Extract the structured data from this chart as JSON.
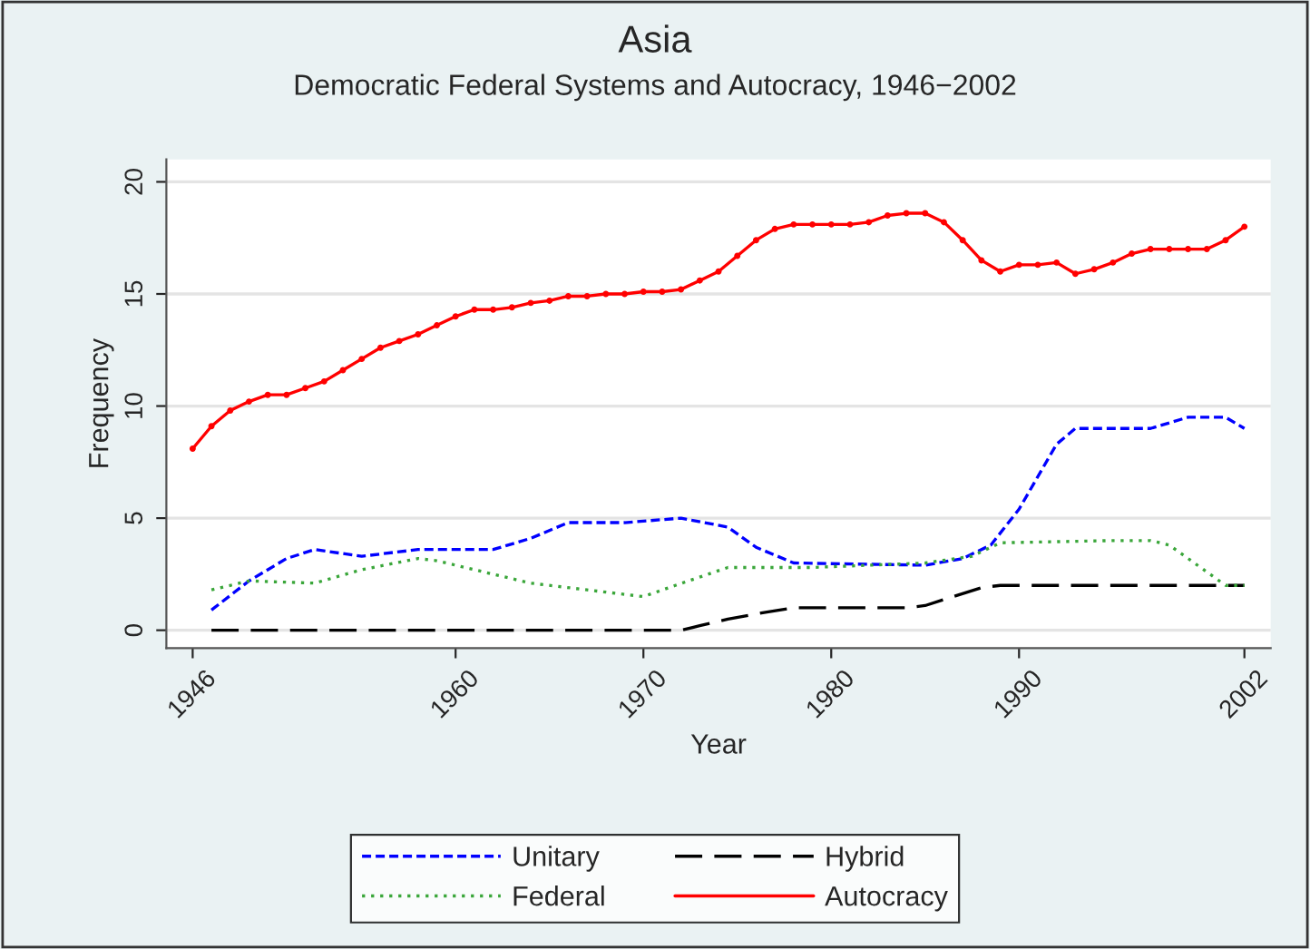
{
  "chart_data": {
    "type": "line",
    "title": "Asia",
    "subtitle": "Democratic Federal Systems and Autocracy, 1946−2002",
    "xlabel": "Year",
    "ylabel": "Frequency",
    "xlim": [
      1944.6,
      2003.4
    ],
    "xticks": [
      1946,
      1960,
      1970,
      1980,
      1990,
      2002
    ],
    "ylim": [
      -0.8,
      21
    ],
    "yticks": [
      0,
      5,
      10,
      15,
      20
    ],
    "grid": "y",
    "legend": "bottom",
    "series": [
      {
        "name": "Unitary",
        "color": "#0000ff",
        "line_style": "dashed",
        "x": [
          1947,
          1949,
          1951,
          1952.5,
          1955,
          1958,
          1962,
          1964,
          1966,
          1969,
          1972,
          1974.5,
          1976,
          1978,
          1985,
          1987,
          1988.5,
          1990,
          1992,
          1993,
          1997,
          1999,
          2001,
          2002
        ],
        "values": [
          0.9,
          2.2,
          3.2,
          3.6,
          3.3,
          3.6,
          3.6,
          4.1,
          4.8,
          4.8,
          5.0,
          4.6,
          3.7,
          3.0,
          2.9,
          3.2,
          3.8,
          5.4,
          8.3,
          9.0,
          9.0,
          9.5,
          9.5,
          9.0
        ]
      },
      {
        "name": "Hybrid",
        "color": "#000000",
        "line_style": "longdash",
        "x": [
          1947,
          1972,
          1973,
          1974.5,
          1976.5,
          1978,
          1984,
          1985,
          1988,
          1989,
          2002
        ],
        "values": [
          0,
          0,
          0.2,
          0.5,
          0.8,
          1.0,
          1.0,
          1.1,
          1.9,
          2.0,
          2.0
        ]
      },
      {
        "name": "Federal",
        "color": "#3aa63a",
        "line_style": "dotted",
        "x": [
          1947,
          1949,
          1952.5,
          1955,
          1958,
          1959,
          1964,
          1967,
          1970,
          1971.7,
          1974.5,
          1979,
          1985,
          1987.5,
          1989,
          1995,
          1997,
          1998,
          2001,
          2002
        ],
        "values": [
          1.8,
          2.2,
          2.1,
          2.7,
          3.2,
          3.1,
          2.1,
          1.8,
          1.5,
          2.0,
          2.8,
          2.8,
          3.0,
          3.3,
          3.9,
          4.0,
          4.0,
          3.8,
          2.0,
          2.0
        ]
      },
      {
        "name": "Autocracy",
        "color": "#ff0000",
        "line_style": "solid",
        "marker": "circle",
        "x": [
          1946,
          1947,
          1948,
          1949,
          1950,
          1951,
          1952,
          1953,
          1954,
          1955,
          1956,
          1957,
          1958,
          1959,
          1960,
          1961,
          1962,
          1963,
          1964,
          1965,
          1966,
          1967,
          1968,
          1969,
          1970,
          1971,
          1972,
          1973,
          1974,
          1975,
          1976,
          1977,
          1978,
          1979,
          1980,
          1981,
          1982,
          1983,
          1984,
          1985,
          1986,
          1987,
          1988,
          1989,
          1990,
          1991,
          1992,
          1993,
          1994,
          1995,
          1996,
          1997,
          1998,
          1999,
          2000,
          2001,
          2002
        ],
        "values": [
          8.1,
          9.1,
          9.8,
          10.2,
          10.5,
          10.5,
          10.8,
          11.1,
          11.6,
          12.1,
          12.6,
          12.9,
          13.2,
          13.6,
          14.0,
          14.3,
          14.3,
          14.4,
          14.6,
          14.7,
          14.9,
          14.9,
          15.0,
          15.0,
          15.1,
          15.1,
          15.2,
          15.6,
          16.0,
          16.7,
          17.4,
          17.9,
          18.1,
          18.1,
          18.1,
          18.1,
          18.2,
          18.5,
          18.6,
          18.6,
          18.2,
          17.4,
          16.5,
          16.0,
          16.3,
          16.3,
          16.4,
          15.9,
          16.1,
          16.4,
          16.8,
          17.0,
          17.0,
          17.0,
          17.0,
          17.4,
          18.0
        ]
      }
    ]
  }
}
